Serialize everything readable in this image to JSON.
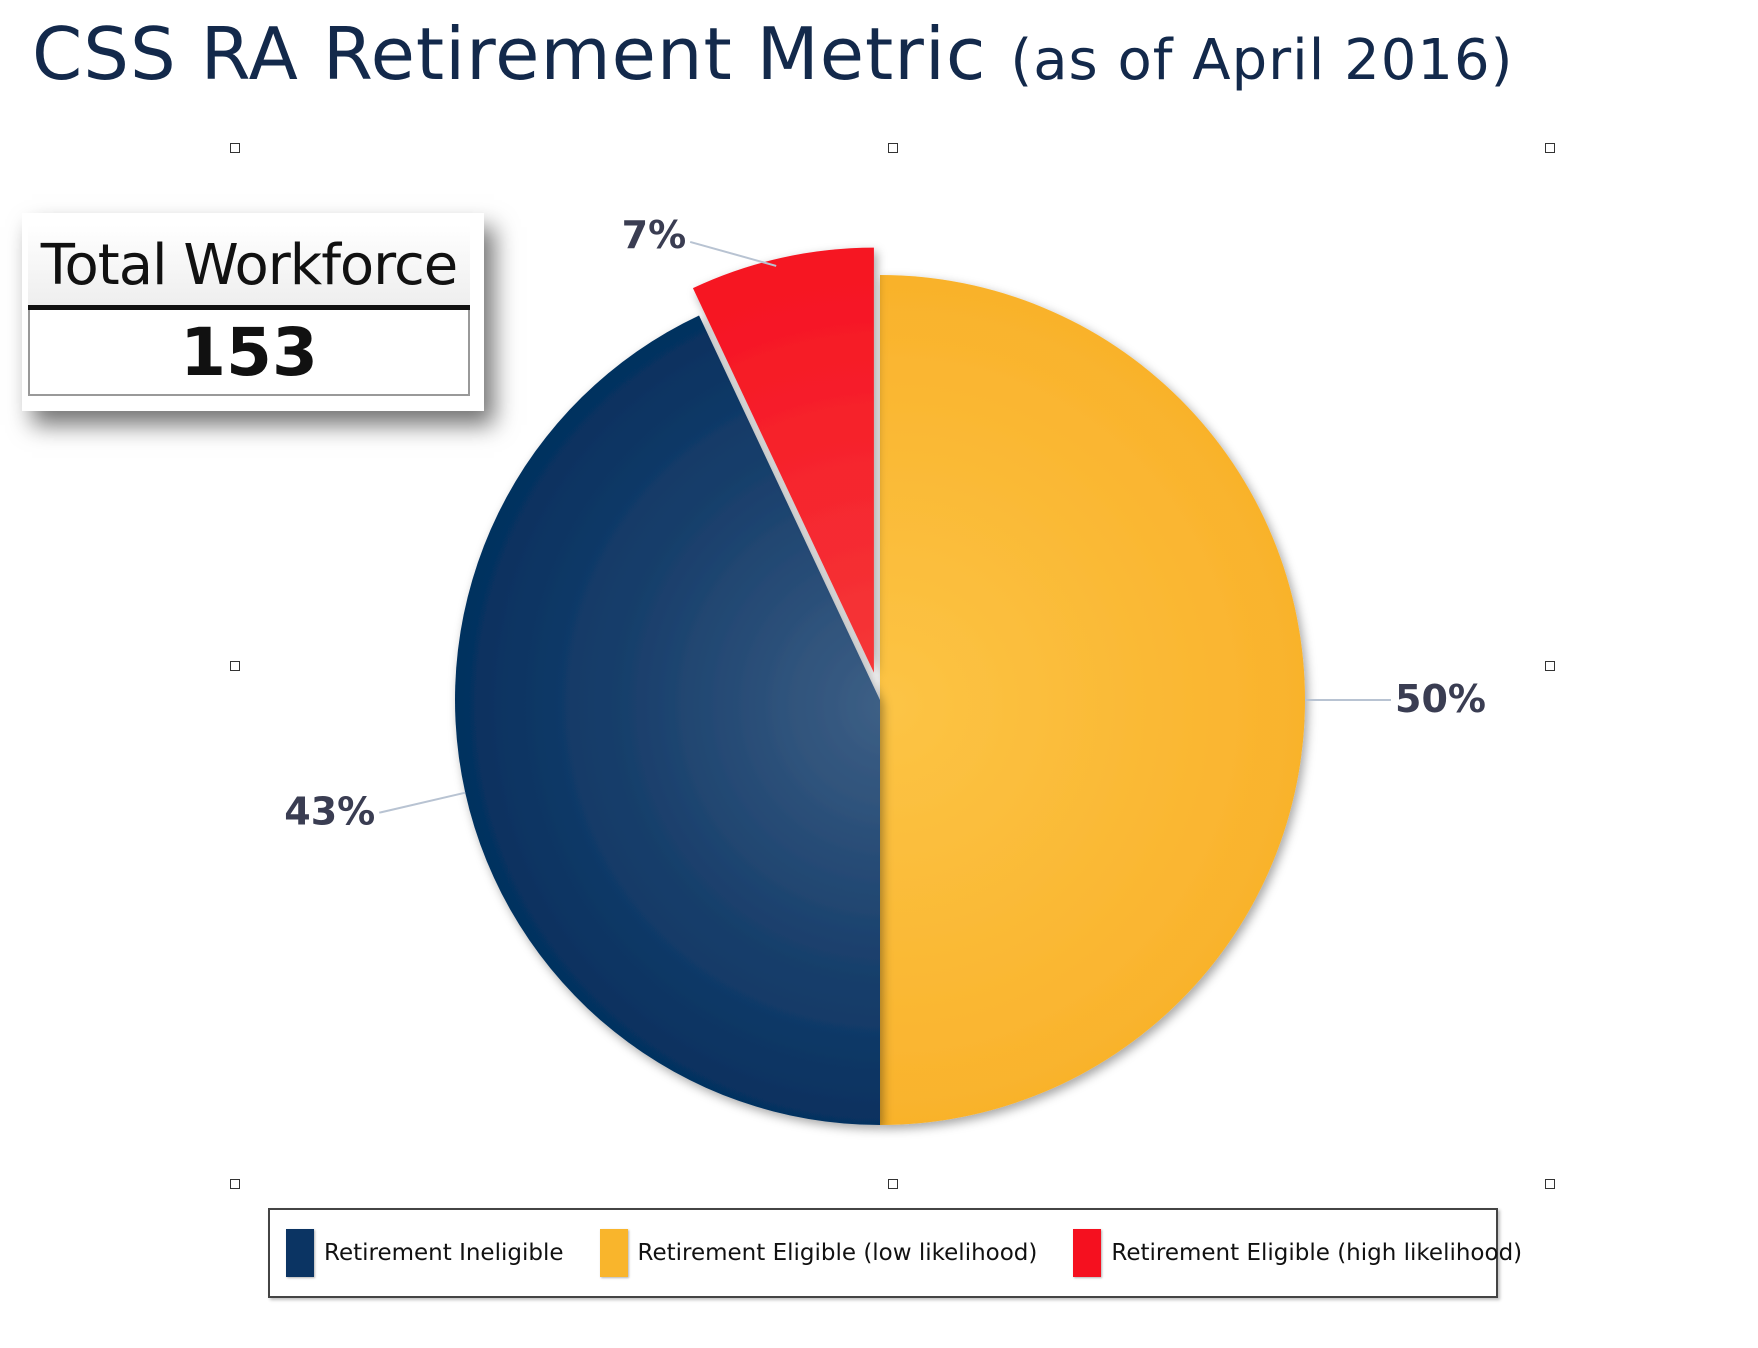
{
  "title": {
    "main": "CSS RA Retirement Metric ",
    "sub": "(as of April 2016)"
  },
  "workforce": {
    "label": "Total Workforce",
    "value": "153"
  },
  "chart_data": {
    "type": "pie",
    "title": "CSS RA Retirement Metric (as of April 2016)",
    "slices": [
      {
        "label": "Retirement Eligible (low likelihood)",
        "value": 50,
        "display": "50%",
        "color": "#f9b52c",
        "exploded": false
      },
      {
        "label": "Retirement Ineligible",
        "value": 43,
        "display": "43%",
        "color": "#0b3463",
        "exploded": false
      },
      {
        "label": "Retirement Eligible (high likelihood)",
        "value": 7,
        "display": "7%",
        "color": "#f5101f",
        "exploded": true
      }
    ],
    "legend_position": "bottom"
  },
  "legend": [
    {
      "label": "Retirement Ineligible",
      "color": "#0b3463"
    },
    {
      "label": "Retirement Eligible (low likelihood)",
      "color": "#f9b52c"
    },
    {
      "label": "Retirement Eligible (high likelihood)",
      "color": "#f5101f"
    }
  ]
}
